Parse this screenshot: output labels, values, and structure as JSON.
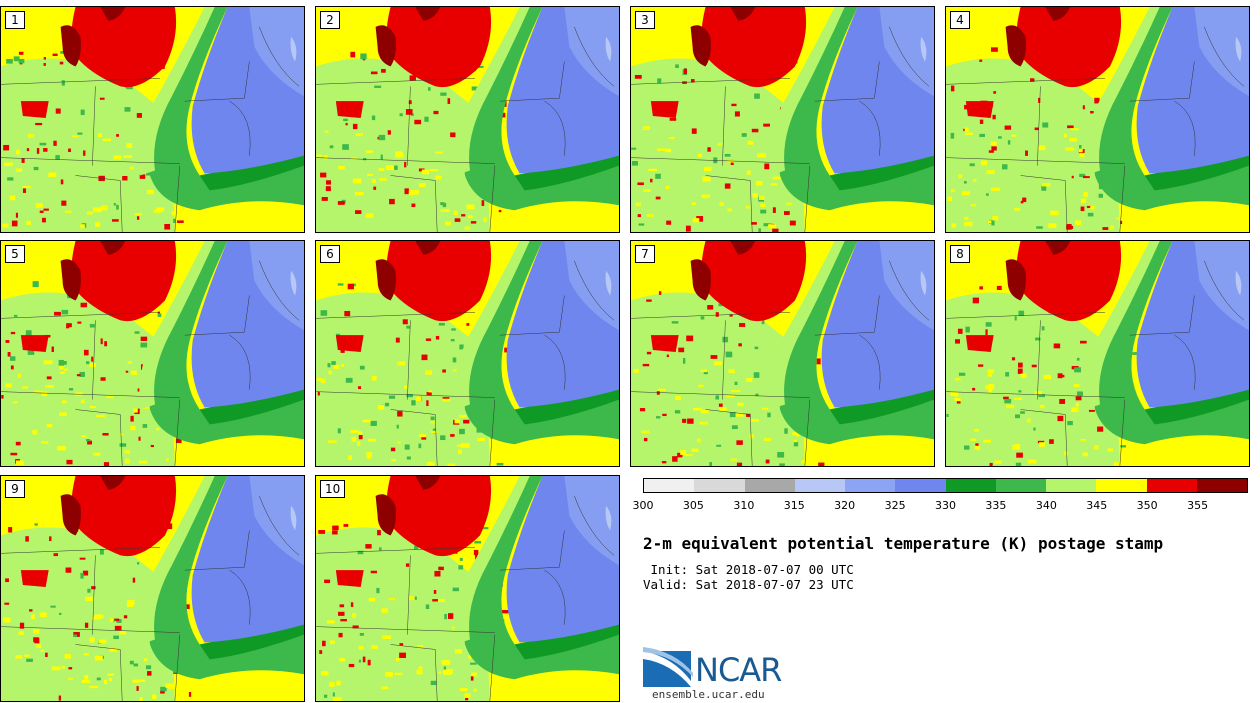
{
  "header": {
    "title": "2-m equivalent potential temperature (K) postage stamp",
    "init": " Init: Sat 2018-07-07 00 UTC",
    "valid": "Valid: Sat 2018-07-07 23 UTC"
  },
  "members": [
    {
      "label": "1"
    },
    {
      "label": "2"
    },
    {
      "label": "3"
    },
    {
      "label": "4"
    },
    {
      "label": "5"
    },
    {
      "label": "6"
    },
    {
      "label": "7"
    },
    {
      "label": "8"
    },
    {
      "label": "9"
    },
    {
      "label": "10"
    }
  ],
  "colorbar": {
    "colors": [
      "#f0f0f0",
      "#d9d9d9",
      "#a8a8a8",
      "#b7c8f6",
      "#8ba4f3",
      "#6f86ee",
      "#0f9a26",
      "#3db84a",
      "#b4f56b",
      "#ffff00",
      "#e80000",
      "#8e0000"
    ],
    "ticks": [
      "300",
      "305",
      "310",
      "315",
      "320",
      "325",
      "330",
      "335",
      "340",
      "345",
      "350",
      "355"
    ]
  },
  "logo": {
    "text": "NCAR",
    "site": "ensemble.ucar.edu"
  }
}
